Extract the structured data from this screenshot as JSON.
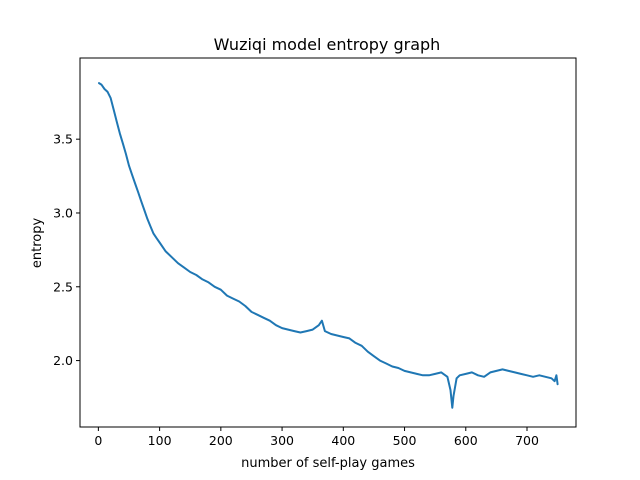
{
  "chart_data": {
    "type": "line",
    "title": "Wuziqi model entropy graph",
    "xlabel": "number of self-play games",
    "ylabel": "entropy",
    "xlim": [
      -30,
      780
    ],
    "ylim": [
      1.55,
      4.05
    ],
    "xticks": [
      0,
      100,
      200,
      300,
      400,
      500,
      600,
      700
    ],
    "yticks": [
      2.0,
      2.5,
      3.0,
      3.5
    ],
    "ytick_labels": [
      "2.0",
      "2.5",
      "3.0",
      "3.5"
    ],
    "grid": false,
    "legend": "none",
    "series": [
      {
        "color": "#1f77b4",
        "x": [
          1,
          5,
          10,
          15,
          20,
          25,
          30,
          35,
          40,
          45,
          50,
          55,
          60,
          65,
          70,
          75,
          80,
          85,
          90,
          95,
          100,
          110,
          120,
          130,
          140,
          150,
          160,
          170,
          180,
          190,
          200,
          210,
          220,
          230,
          240,
          250,
          260,
          270,
          280,
          290,
          300,
          310,
          320,
          330,
          340,
          350,
          360,
          365,
          370,
          380,
          390,
          400,
          410,
          420,
          430,
          440,
          450,
          460,
          470,
          480,
          490,
          500,
          510,
          520,
          530,
          540,
          550,
          560,
          570,
          575,
          578,
          580,
          585,
          590,
          600,
          610,
          620,
          630,
          640,
          650,
          660,
          670,
          680,
          690,
          700,
          710,
          720,
          730,
          740,
          745,
          748,
          750
        ],
        "y": [
          3.88,
          3.87,
          3.84,
          3.82,
          3.78,
          3.7,
          3.62,
          3.54,
          3.47,
          3.4,
          3.32,
          3.26,
          3.2,
          3.14,
          3.08,
          3.02,
          2.96,
          2.91,
          2.86,
          2.83,
          2.8,
          2.74,
          2.7,
          2.66,
          2.63,
          2.6,
          2.58,
          2.55,
          2.53,
          2.5,
          2.48,
          2.44,
          2.42,
          2.4,
          2.37,
          2.33,
          2.31,
          2.29,
          2.27,
          2.24,
          2.22,
          2.21,
          2.2,
          2.19,
          2.2,
          2.21,
          2.24,
          2.27,
          2.2,
          2.18,
          2.17,
          2.16,
          2.15,
          2.12,
          2.1,
          2.06,
          2.03,
          2.0,
          1.98,
          1.96,
          1.95,
          1.93,
          1.92,
          1.91,
          1.9,
          1.9,
          1.91,
          1.92,
          1.89,
          1.8,
          1.68,
          1.76,
          1.88,
          1.9,
          1.91,
          1.92,
          1.9,
          1.89,
          1.92,
          1.93,
          1.94,
          1.93,
          1.92,
          1.91,
          1.9,
          1.89,
          1.9,
          1.89,
          1.88,
          1.86,
          1.9,
          1.84
        ]
      }
    ]
  }
}
